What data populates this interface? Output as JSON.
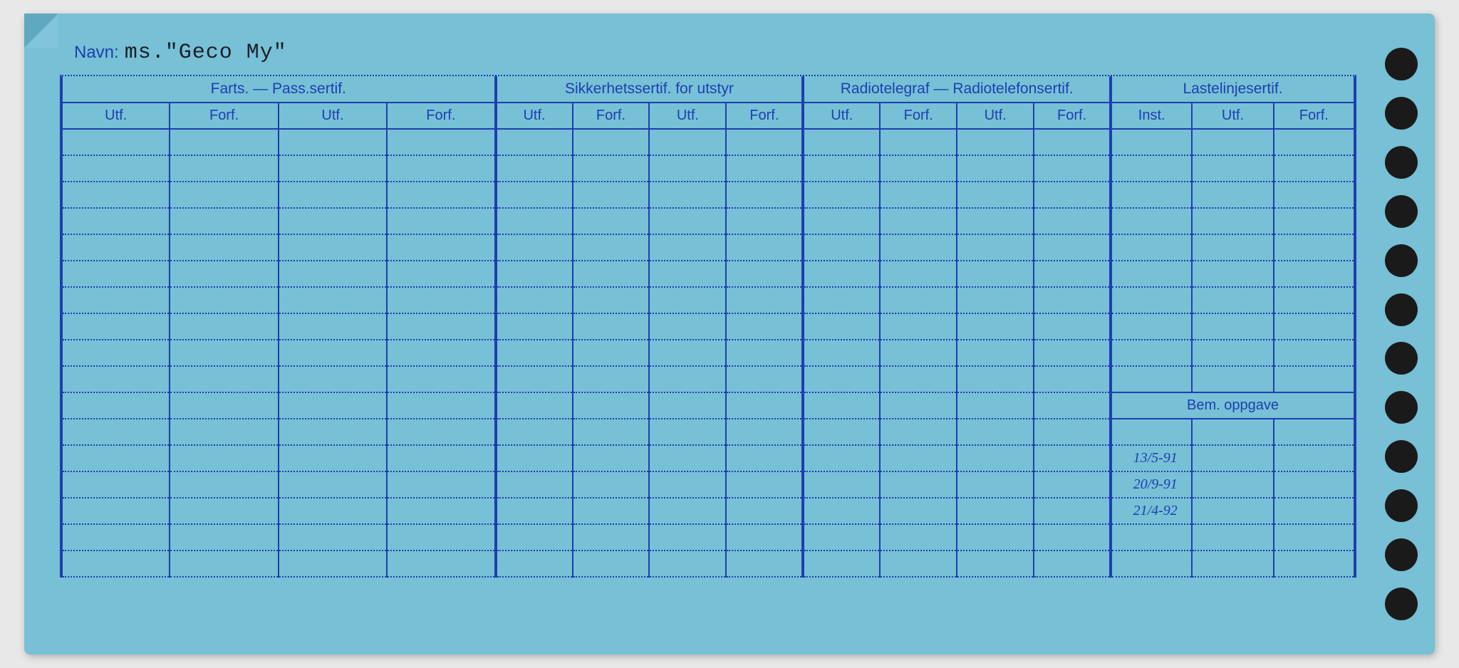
{
  "colors": {
    "card_bg": "#77c0d6",
    "ink": "#1d3fb0",
    "hole": "#1a1a1a",
    "typewriter": "#1a1f2b",
    "handwriting": "#112030"
  },
  "name": {
    "label": "Navn:",
    "value": "ms.\"Geco My\""
  },
  "groups": [
    {
      "title": "Farts. — Pass.sertif.",
      "cols": [
        "Utf.",
        "Forf.",
        "Utf.",
        "Forf."
      ]
    },
    {
      "title": "Sikkerhetssertif. for utstyr",
      "cols": [
        "Utf.",
        "Forf.",
        "Utf.",
        "Forf."
      ]
    },
    {
      "title": "Radiotelegraf — Radiotelefonsertif.",
      "cols": [
        "Utf.",
        "Forf.",
        "Utf.",
        "Forf."
      ]
    },
    {
      "title": "Lastelinjesertif.",
      "cols": [
        "Inst.",
        "Utf.",
        "Forf."
      ]
    }
  ],
  "bem_label": "Bem. oppgave",
  "handwritten": [
    "13/5-91",
    "20/9-91",
    "21/4-92"
  ],
  "layout": {
    "data_rows": 17,
    "bem_row_index": 10,
    "handwritten_start_row": 12,
    "handwritten_col_index": 12,
    "holes": 12
  }
}
